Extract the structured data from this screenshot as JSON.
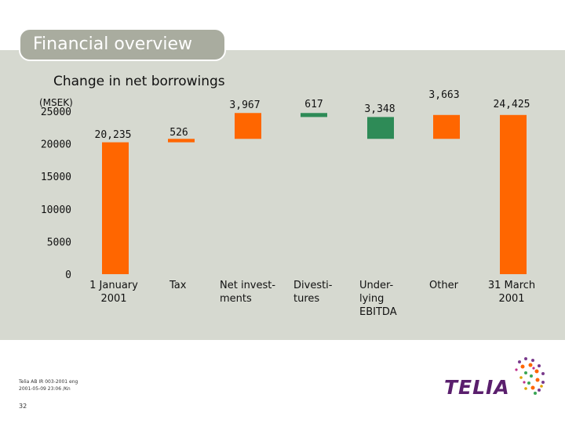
{
  "header": {
    "section_title": "Financial overview"
  },
  "footer": {
    "note_line1": "Telia AB IR 003-2001 eng",
    "note_line2": "2001-05-09 23:06 /Kn",
    "page_number": "32"
  },
  "logo": {
    "text": "TELIA"
  },
  "colors": {
    "increase": "#ff6600",
    "decrease": "#2e8b57",
    "panel": "#d6d9d0",
    "header": "#a9ac9f"
  },
  "chart_data": {
    "type": "bar",
    "subtype": "waterfall",
    "title": "Change in net borrowings",
    "ylabel": "(MSEK)",
    "ylim": [
      0,
      25000
    ],
    "yticks": [
      0,
      5000,
      10000,
      15000,
      20000,
      25000
    ],
    "ytick_labels": [
      "0",
      "5000",
      "10000",
      "15000",
      "20000",
      "25000"
    ],
    "categories": [
      [
        "1 January",
        "2001"
      ],
      [
        "Tax"
      ],
      [
        "Net invest-",
        "ments"
      ],
      [
        "Divesti-",
        "tures"
      ],
      [
        "Under-",
        "lying",
        "EBITDA"
      ],
      [
        "Other"
      ],
      [
        "31 March",
        "2001"
      ]
    ],
    "bars": [
      {
        "label": "20,235",
        "base": 0,
        "top": 20235,
        "kind": "total"
      },
      {
        "label": "526",
        "base": 20235,
        "top": 20761,
        "kind": "increase"
      },
      {
        "label": "3,967",
        "base": 20761,
        "top": 24728,
        "kind": "increase"
      },
      {
        "label": "617",
        "base": 24728,
        "top": 24111,
        "kind": "decrease"
      },
      {
        "label": "3,348",
        "base": 24111,
        "top": 20763,
        "kind": "decrease"
      },
      {
        "label": "3,663",
        "base": 20763,
        "top": 24426,
        "kind": "increase"
      },
      {
        "label": "24,425",
        "base": 0,
        "top": 24425,
        "kind": "total"
      }
    ]
  }
}
